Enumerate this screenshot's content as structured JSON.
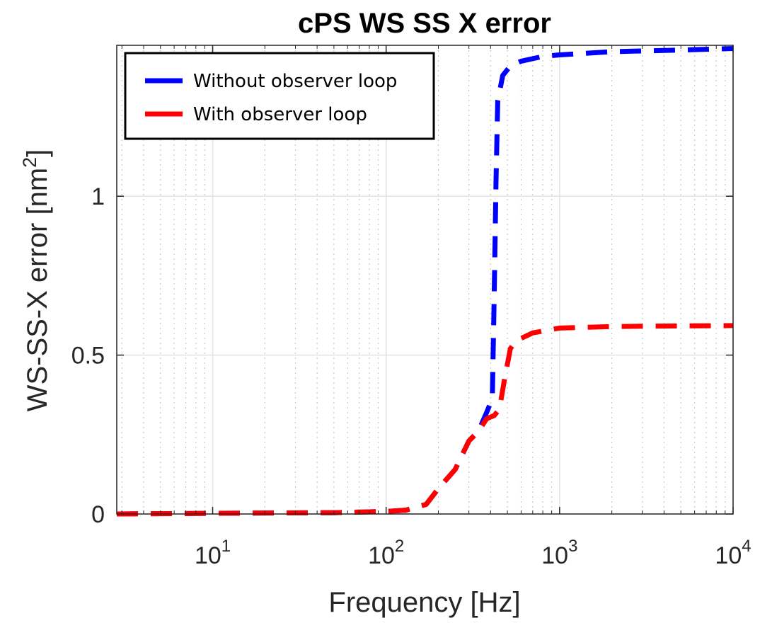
{
  "chart_data": {
    "type": "line",
    "title": "cPS WS SS X error",
    "xlabel": "Frequency [Hz]",
    "ylabel": "WS-SS-X error [nm",
    "ylabel_sup": "2",
    "ylabel_end": "]",
    "xscale": "log",
    "xlim": [
      2.8,
      10000
    ],
    "ylim": [
      0,
      1.475
    ],
    "grid": true,
    "legend_position": "top-left",
    "x_ticks": [
      {
        "value": 10,
        "base": "10",
        "exp": "1"
      },
      {
        "value": 100,
        "base": "10",
        "exp": "2"
      },
      {
        "value": 1000,
        "base": "10",
        "exp": "3"
      },
      {
        "value": 10000,
        "base": "10",
        "exp": "4"
      }
    ],
    "y_ticks": [
      {
        "value": 0,
        "label": "0"
      },
      {
        "value": 0.5,
        "label": "0.5"
      },
      {
        "value": 1,
        "label": "1"
      }
    ],
    "series": [
      {
        "name": "Without observer loop",
        "color": "#0000ff",
        "style": "dashed",
        "points": [
          [
            2.8,
            0
          ],
          [
            10,
            0.002
          ],
          [
            50,
            0.004
          ],
          [
            100,
            0.008
          ],
          [
            130,
            0.012
          ],
          [
            170,
            0.03
          ],
          [
            200,
            0.08
          ],
          [
            250,
            0.14
          ],
          [
            300,
            0.23
          ],
          [
            340,
            0.26
          ],
          [
            380,
            0.32
          ],
          [
            400,
            0.35
          ],
          [
            410,
            0.38
          ],
          [
            420,
            0.7
          ],
          [
            430,
            1.05
          ],
          [
            440,
            1.3
          ],
          [
            470,
            1.38
          ],
          [
            520,
            1.41
          ],
          [
            600,
            1.425
          ],
          [
            800,
            1.44
          ],
          [
            1000,
            1.445
          ],
          [
            2000,
            1.455
          ],
          [
            5000,
            1.46
          ],
          [
            10000,
            1.465
          ]
        ]
      },
      {
        "name": "With observer loop",
        "color": "#ff0000",
        "style": "dashed",
        "points": [
          [
            2.8,
            0
          ],
          [
            10,
            0.002
          ],
          [
            50,
            0.004
          ],
          [
            100,
            0.008
          ],
          [
            130,
            0.012
          ],
          [
            170,
            0.03
          ],
          [
            200,
            0.08
          ],
          [
            250,
            0.14
          ],
          [
            300,
            0.23
          ],
          [
            340,
            0.26
          ],
          [
            380,
            0.3
          ],
          [
            420,
            0.31
          ],
          [
            450,
            0.33
          ],
          [
            480,
            0.42
          ],
          [
            520,
            0.52
          ],
          [
            560,
            0.545
          ],
          [
            700,
            0.57
          ],
          [
            1000,
            0.585
          ],
          [
            2000,
            0.59
          ],
          [
            5000,
            0.592
          ],
          [
            10000,
            0.593
          ]
        ]
      }
    ]
  }
}
